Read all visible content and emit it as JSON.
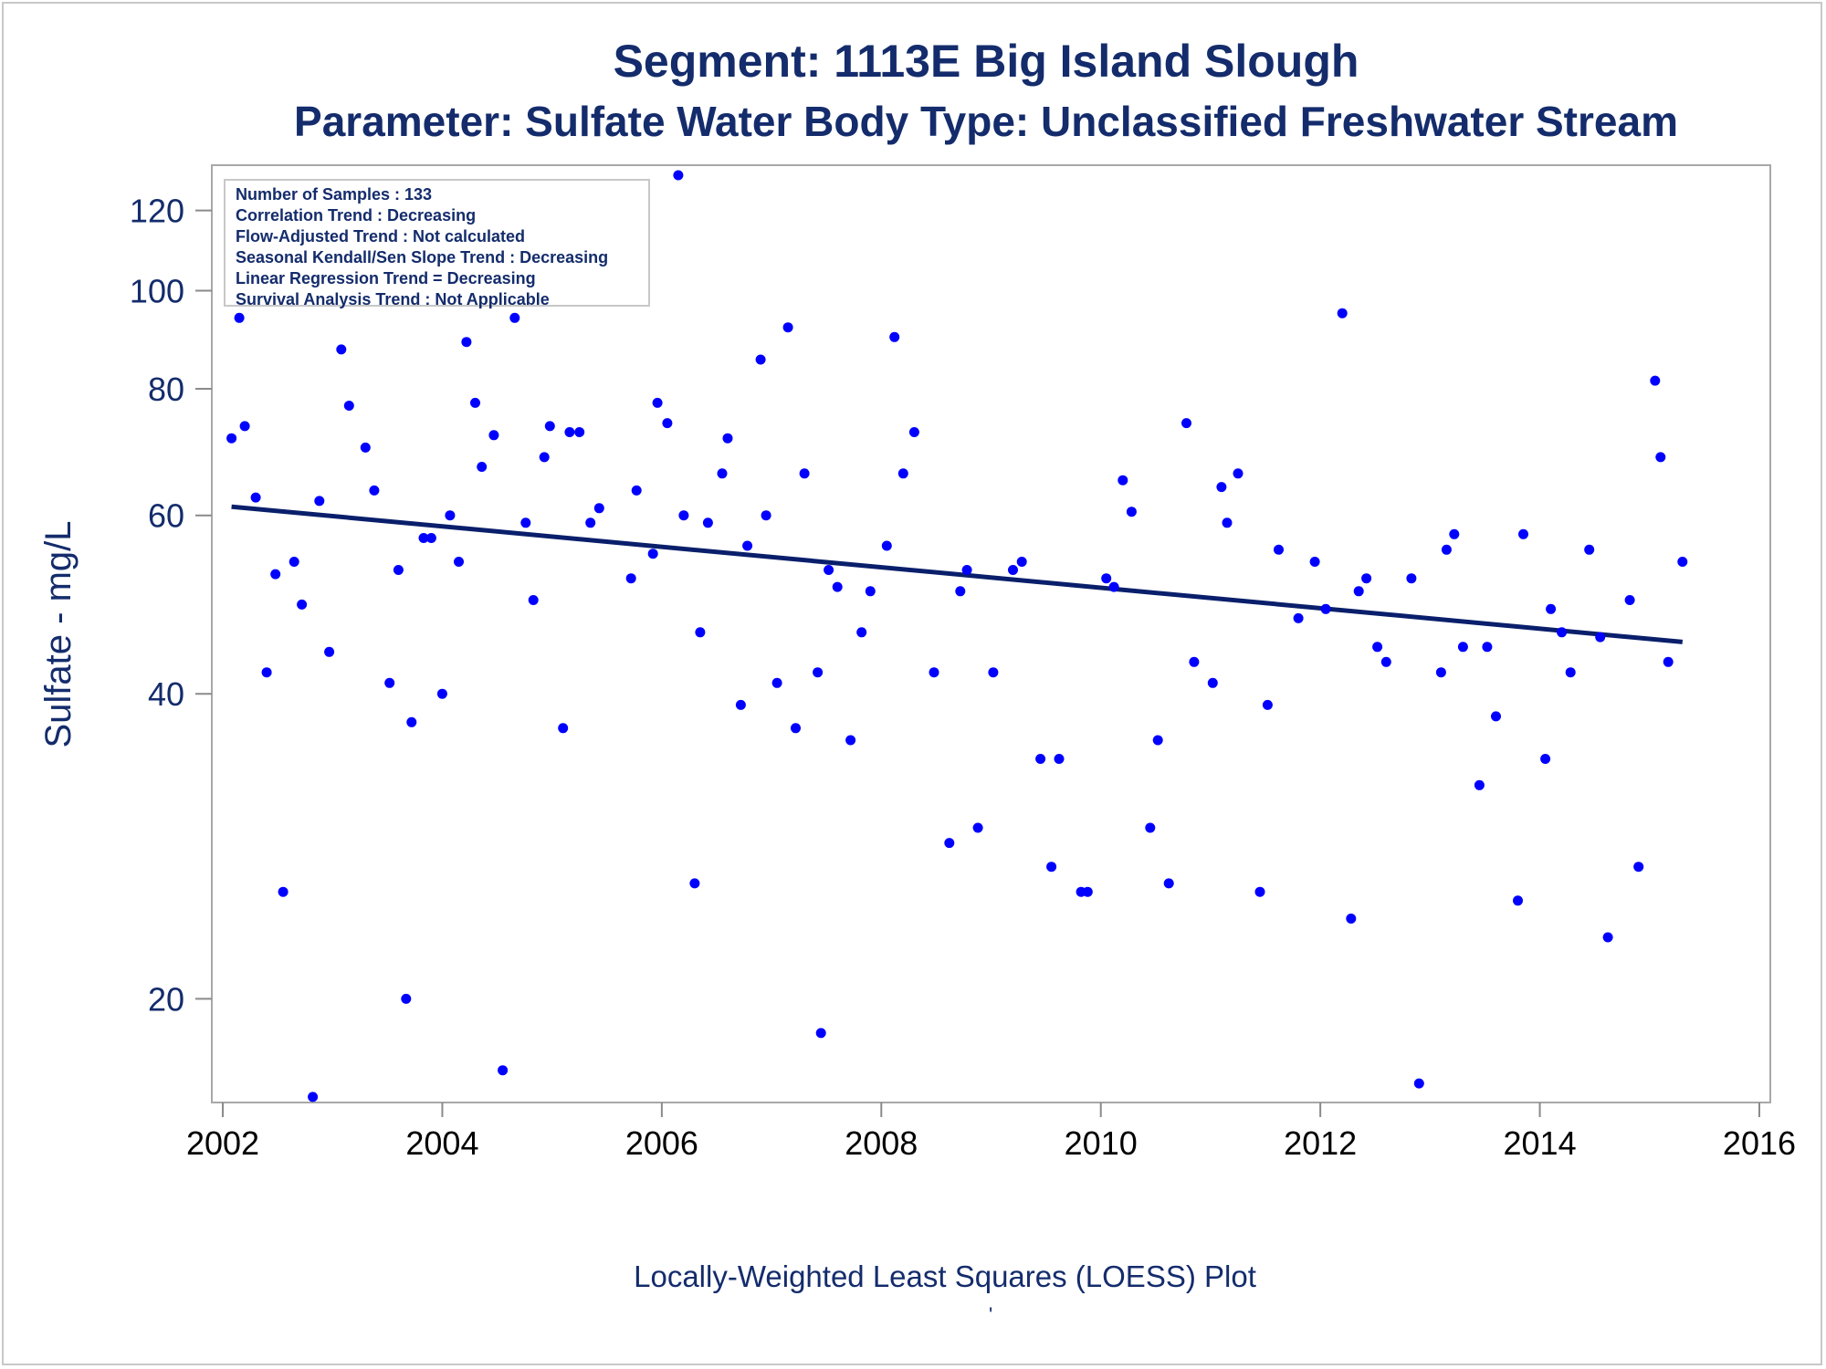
{
  "titles": {
    "line1": "Segment: 1113E  Big Island Slough",
    "line2": "Parameter: Sulfate   Water Body Type: Unclassified Freshwater Stream"
  },
  "stats_box": {
    "lines": [
      "Number of Samples : 133",
      "Correlation Trend : Decreasing",
      "Flow-Adjusted Trend : Not calculated",
      "Seasonal Kendall/Sen Slope Trend : Decreasing",
      "Linear Regression Trend = Decreasing",
      "Survival Analysis Trend : Not Applicable"
    ]
  },
  "footnote": "Locally-Weighted Least Squares (LOESS) Plot",
  "footnote_mark": "'",
  "colors": {
    "points": "#0000ff",
    "trend_line": "#0a1f6b",
    "text": "#142c6c",
    "frame": "#a8a8a8"
  },
  "chart_data": {
    "type": "scatter",
    "title": "Segment: 1113E  Big Island Slough",
    "subtitle": "Parameter: Sulfate   Water Body Type: Unclassified Freshwater Stream",
    "xlabel": "",
    "ylabel": "Sulfate - mg/L",
    "y_scale": "log",
    "xlim": [
      2001.9,
      2016.1
    ],
    "ylim": [
      15.8,
      133
    ],
    "x_ticks": [
      2002,
      2004,
      2006,
      2008,
      2010,
      2012,
      2014,
      2016
    ],
    "x_tick_labels": [
      "2002",
      "2004",
      "2006",
      "2008",
      "2010",
      "2012",
      "2014",
      "2016"
    ],
    "y_ticks": [
      20,
      40,
      60,
      80,
      100,
      120
    ],
    "y_tick_labels": [
      "20",
      "40",
      "60",
      "80",
      "100",
      "120"
    ],
    "grid": false,
    "legend": "none",
    "series": [
      {
        "type": "scatter",
        "x": [
          2002.08,
          2002.15,
          2002.2,
          2002.3,
          2002.4,
          2002.48,
          2002.55,
          2002.65,
          2002.72,
          2002.82,
          2002.88,
          2002.97,
          2003.08,
          2003.15,
          2003.3,
          2003.38,
          2003.52,
          2003.6,
          2003.67,
          2003.72,
          2003.83,
          2003.9,
          2004.0,
          2004.07,
          2004.15,
          2004.22,
          2004.3,
          2004.36,
          2004.47,
          2004.55,
          2004.66,
          2004.76,
          2004.83,
          2004.93,
          2004.98,
          2005.1,
          2005.16,
          2005.25,
          2005.35,
          2005.43,
          2005.72,
          2005.77,
          2005.92,
          2005.96,
          2006.05,
          2006.15,
          2006.2,
          2006.3,
          2006.35,
          2006.42,
          2006.55,
          2006.6,
          2006.72,
          2006.78,
          2006.9,
          2006.95,
          2007.05,
          2007.15,
          2007.22,
          2007.3,
          2007.42,
          2007.45,
          2007.52,
          2007.6,
          2007.72,
          2007.82,
          2007.9,
          2008.05,
          2008.12,
          2008.2,
          2008.3,
          2008.48,
          2008.62,
          2008.72,
          2008.78,
          2008.88,
          2009.02,
          2009.2,
          2009.28,
          2009.45,
          2009.55,
          2009.62,
          2009.82,
          2009.88,
          2010.05,
          2010.12,
          2010.2,
          2010.28,
          2010.45,
          2010.52,
          2010.62,
          2010.78,
          2010.85,
          2011.02,
          2011.1,
          2011.15,
          2011.25,
          2011.45,
          2011.52,
          2011.62,
          2011.8,
          2011.95,
          2012.05,
          2012.2,
          2012.28,
          2012.35,
          2012.42,
          2012.52,
          2012.6,
          2012.83,
          2012.9,
          2013.1,
          2013.15,
          2013.22,
          2013.3,
          2013.45,
          2013.52,
          2013.6,
          2013.8,
          2013.85,
          2014.05,
          2014.1,
          2014.2,
          2014.28,
          2014.45,
          2014.55,
          2014.62,
          2014.82,
          2014.9,
          2015.05,
          2015.1,
          2015.17,
          2015.3
        ],
        "y": [
          71.5,
          94,
          73.5,
          62.5,
          42,
          52.5,
          25.5,
          54,
          49,
          16,
          62,
          44,
          87.5,
          77,
          70,
          63.5,
          41,
          53,
          20,
          37.5,
          57,
          57,
          40,
          60,
          54,
          89,
          77.5,
          67,
          72,
          17,
          94,
          59,
          49.5,
          68.5,
          73.5,
          37,
          72.5,
          72.5,
          59,
          61,
          52,
          63.5,
          55,
          77.5,
          74,
          130,
          60,
          26,
          46,
          59,
          66,
          71.5,
          39,
          56,
          85.5,
          60,
          41,
          92,
          37,
          66,
          42,
          18.5,
          53,
          51,
          36,
          46,
          50.5,
          56,
          90,
          66,
          72.5,
          42,
          28.5,
          50.5,
          53,
          29.5,
          42,
          53,
          54,
          34.5,
          27,
          34.5,
          25.5,
          25.5,
          52,
          51,
          65,
          60.5,
          29.5,
          36,
          26,
          74,
          43,
          41,
          64,
          59,
          66,
          25.5,
          39,
          55.5,
          47.5,
          54,
          48.5,
          95,
          24,
          50.5,
          52,
          44.5,
          43,
          52,
          16.5,
          42,
          55.5,
          57.5,
          44.5,
          32.5,
          44.5,
          38,
          25,
          57.5,
          34.5,
          48.5,
          46,
          42,
          55.5,
          45.5,
          23,
          49.5,
          27,
          81.5,
          68.5,
          43,
          54
        ]
      },
      {
        "type": "line",
        "x": [
          2002.08,
          2015.3
        ],
        "y": [
          61.2,
          45
        ]
      }
    ]
  }
}
